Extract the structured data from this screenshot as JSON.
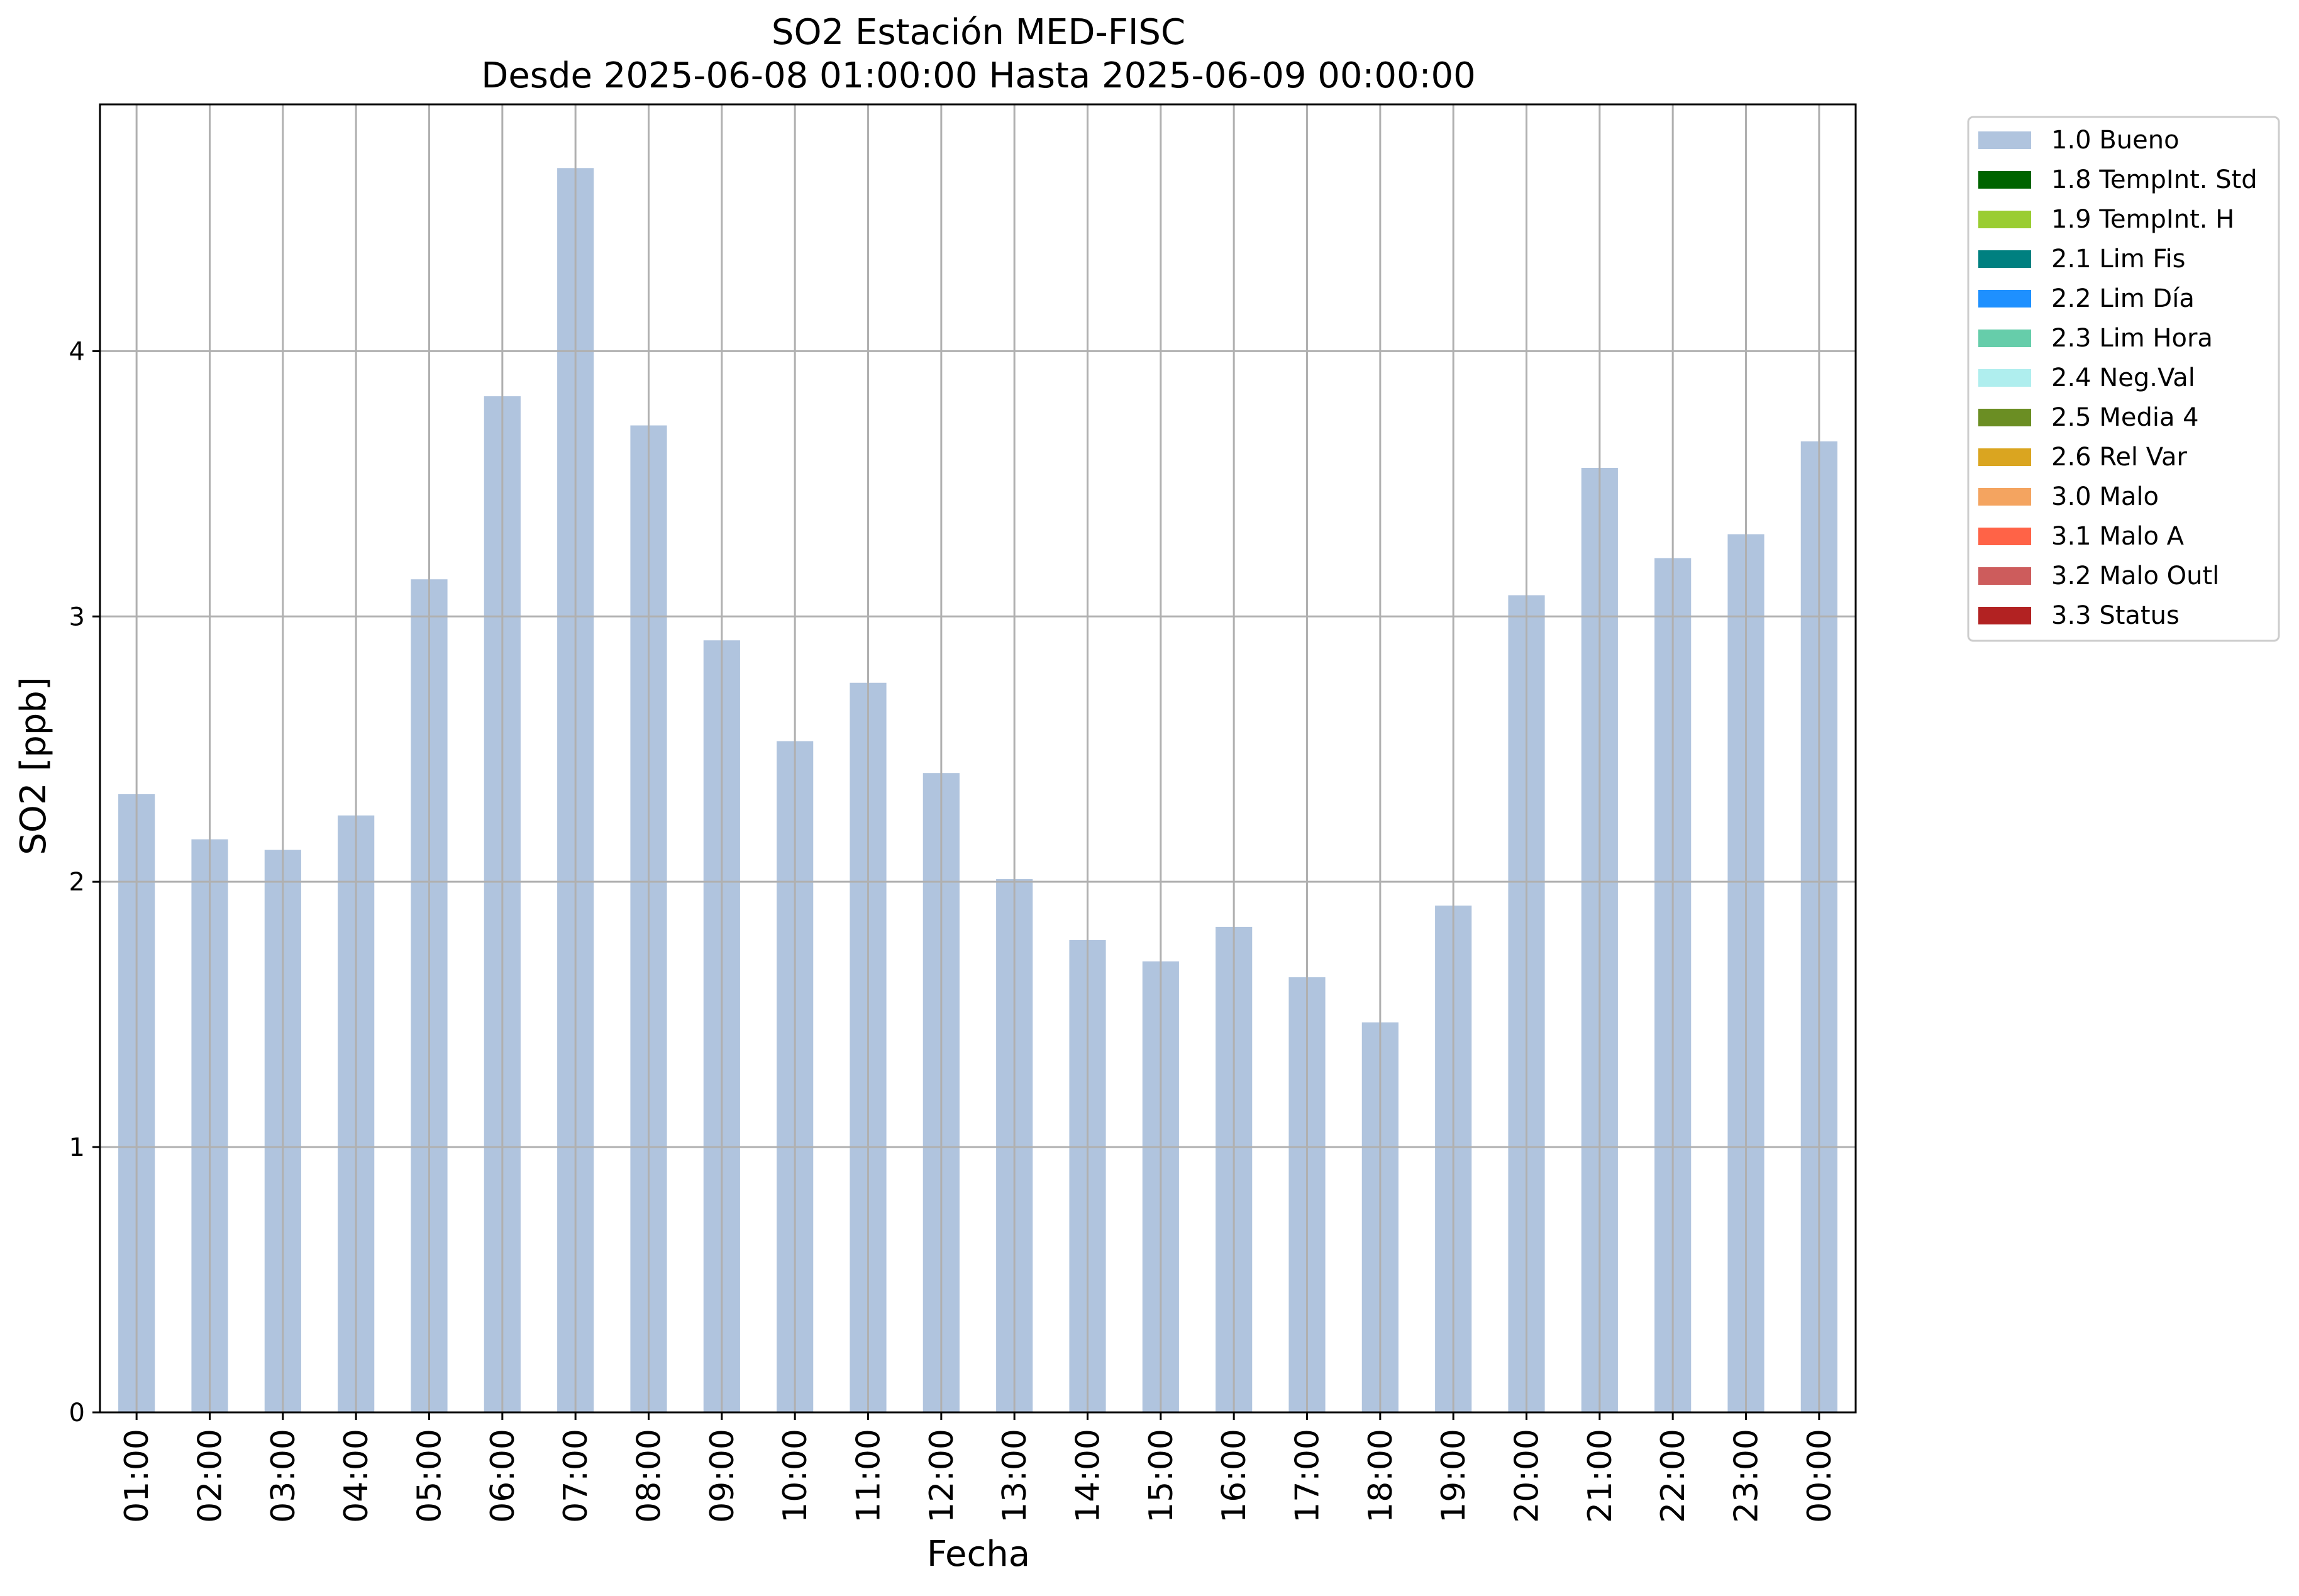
{
  "chart_data": {
    "type": "bar",
    "title": "SO2 Estación MED-FISC",
    "subtitle": "Desde 2025-06-08 01:00:00 Hasta 2025-06-09 00:00:00",
    "xlabel": "Fecha",
    "ylabel": "SO2 [ppb]",
    "categories": [
      "01:00",
      "02:00",
      "03:00",
      "04:00",
      "05:00",
      "06:00",
      "07:00",
      "08:00",
      "09:00",
      "10:00",
      "11:00",
      "12:00",
      "13:00",
      "14:00",
      "15:00",
      "16:00",
      "17:00",
      "18:00",
      "19:00",
      "20:00",
      "21:00",
      "22:00",
      "23:00",
      "00:00"
    ],
    "series": [
      {
        "name": "1.0 Bueno",
        "color": "#b0c4de",
        "values": [
          2.33,
          2.16,
          2.12,
          2.25,
          3.14,
          3.83,
          4.69,
          3.72,
          2.91,
          2.53,
          2.75,
          2.41,
          2.01,
          1.78,
          1.7,
          1.83,
          1.64,
          1.47,
          1.91,
          3.08,
          3.56,
          3.22,
          3.31,
          3.66
        ]
      }
    ],
    "ylim": [
      0,
      4.93
    ],
    "yticks": [
      0,
      1,
      2,
      3,
      4
    ],
    "grid": true,
    "legend_position": "outside-top-right",
    "legend": [
      {
        "label": "1.0 Bueno",
        "color": "#b0c4de"
      },
      {
        "label": "1.8 TempInt. Std",
        "color": "#006400"
      },
      {
        "label": "1.9 TempInt. H",
        "color": "#9acd32"
      },
      {
        "label": "2.1 Lim Fis",
        "color": "#008080"
      },
      {
        "label": "2.2 Lim Día",
        "color": "#1e90ff"
      },
      {
        "label": "2.3 Lim Hora",
        "color": "#66cdaa"
      },
      {
        "label": "2.4 Neg.Val",
        "color": "#afeeee"
      },
      {
        "label": "2.5 Media 4",
        "color": "#6b8e23"
      },
      {
        "label": "2.6 Rel Var",
        "color": "#daa520"
      },
      {
        "label": "3.0 Malo",
        "color": "#f4a460"
      },
      {
        "label": "3.1 Malo A",
        "color": "#ff6347"
      },
      {
        "label": "3.2 Malo Outl",
        "color": "#cd5c5c"
      },
      {
        "label": "3.3 Status",
        "color": "#b22222"
      }
    ]
  }
}
